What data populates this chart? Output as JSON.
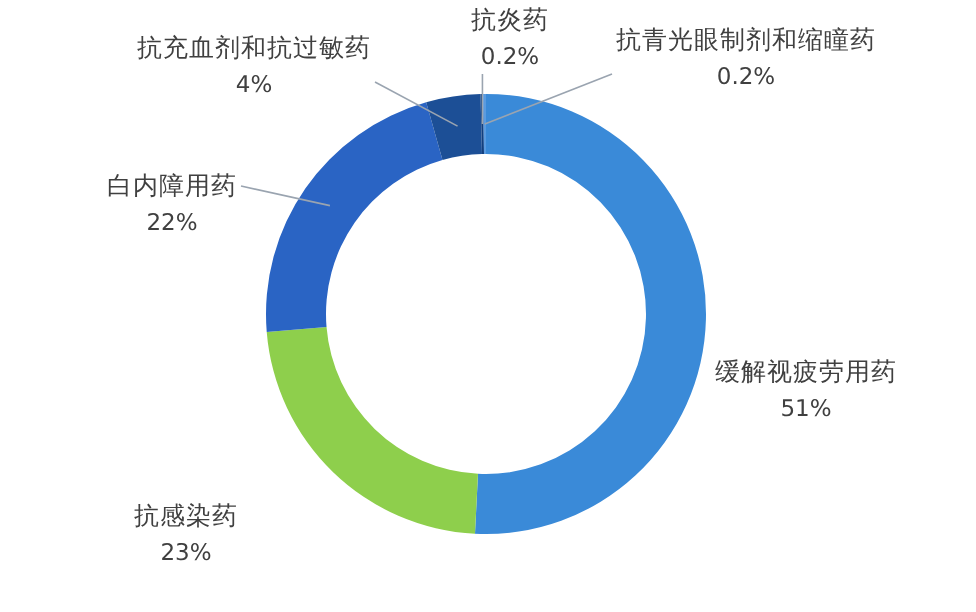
{
  "chart_data": {
    "type": "donut",
    "categories": [
      "缓解视疲劳用药",
      "抗感染药",
      "白内障用药",
      "抗充血剂和抗过敏药",
      "抗炎药",
      "抗青光眼制剂和缩瞳药"
    ],
    "values": [
      51,
      23,
      22,
      4,
      0.2,
      0.2
    ],
    "value_labels": [
      "51%",
      "23%",
      "22%",
      "4%",
      "0.2%",
      "0.2%"
    ],
    "colors": [
      "#3a8ad8",
      "#8ecf4c",
      "#2a64c4",
      "#1c4f96",
      "#123f7e",
      "#5a9be0"
    ]
  }
}
